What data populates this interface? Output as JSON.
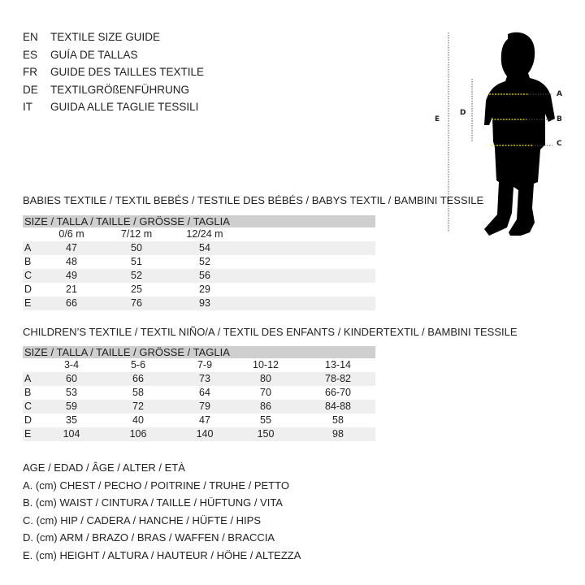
{
  "guide_titles": [
    {
      "lang": "EN",
      "title": "TEXTILE SIZE GUIDE"
    },
    {
      "lang": "ES",
      "title": "GUÍA DE TALLAS"
    },
    {
      "lang": "FR",
      "title": "GUIDE DES TAILLES TEXTILE"
    },
    {
      "lang": "DE",
      "title": "TEXTILGRÖßENFÜHRUNG"
    },
    {
      "lang": "IT",
      "title": "GUIDA ALLE TAGLIE TESSILI"
    }
  ],
  "figure": {
    "labels": {
      "a": "A",
      "b": "B",
      "c": "C",
      "d": "D",
      "e": "E"
    },
    "measure_line_color": "#f2e600"
  },
  "babies": {
    "title": "BABIES TEXTILE / TEXTIL BEBÉS / TESTILE DES BÉBÉS / BABYS TEXTIL / BAMBINI TESSILE",
    "size_header": "SIZE / TALLA / TAILLE / GRÖSSE / TAGLIA",
    "columns": [
      "0/6 m",
      "7/12 m",
      "12/24 m"
    ],
    "rows": [
      {
        "label": "A",
        "values": [
          "47",
          "50",
          "54"
        ]
      },
      {
        "label": "B",
        "values": [
          "48",
          "51",
          "52"
        ]
      },
      {
        "label": "C",
        "values": [
          "49",
          "52",
          "56"
        ]
      },
      {
        "label": "D",
        "values": [
          "21",
          "25",
          "29"
        ]
      },
      {
        "label": "E",
        "values": [
          "66",
          "76",
          "93"
        ]
      }
    ]
  },
  "children": {
    "title": "CHILDREN’S TEXTILE / TEXTIL NIÑO/A / TEXTIL DES ENFANTS / KINDERTEXTIL / BAMBINI TESSILE",
    "size_header": "SIZE / TALLA / TAILLE / GRÖSSE / TAGLIA",
    "columns": [
      "3-4",
      "5-6",
      "7-9",
      "10-12",
      "13-14"
    ],
    "rows": [
      {
        "label": "A",
        "values": [
          "60",
          "66",
          "73",
          "80",
          "78-82"
        ]
      },
      {
        "label": "B",
        "values": [
          "53",
          "58",
          "64",
          "70",
          "66-70"
        ]
      },
      {
        "label": "C",
        "values": [
          "59",
          "72",
          "79",
          "86",
          "84-88"
        ]
      },
      {
        "label": "D",
        "values": [
          "35",
          "40",
          "47",
          "55",
          "58"
        ]
      },
      {
        "label": "E",
        "values": [
          "104",
          "106",
          "140",
          "150",
          "98"
        ]
      }
    ]
  },
  "legend": [
    "AGE / EDAD / ÂGE / ALTER / ETÀ",
    "A. (cm) CHEST / PECHO / POITRINE / TRUHE / PETTO",
    "B. (cm) WAIST / CINTURA / TAILLE / HÜFTUNG / VITA",
    "C. (cm) HIP / CADERA / HANCHE / HÜFTE / HIPS",
    "D. (cm) ARM / BRAZO / BRAS / WAFFEN / BRACCIA",
    "E. (cm) HEIGHT / ALTURA / HAUTEUR / HÖHE / ALTEZZA"
  ]
}
